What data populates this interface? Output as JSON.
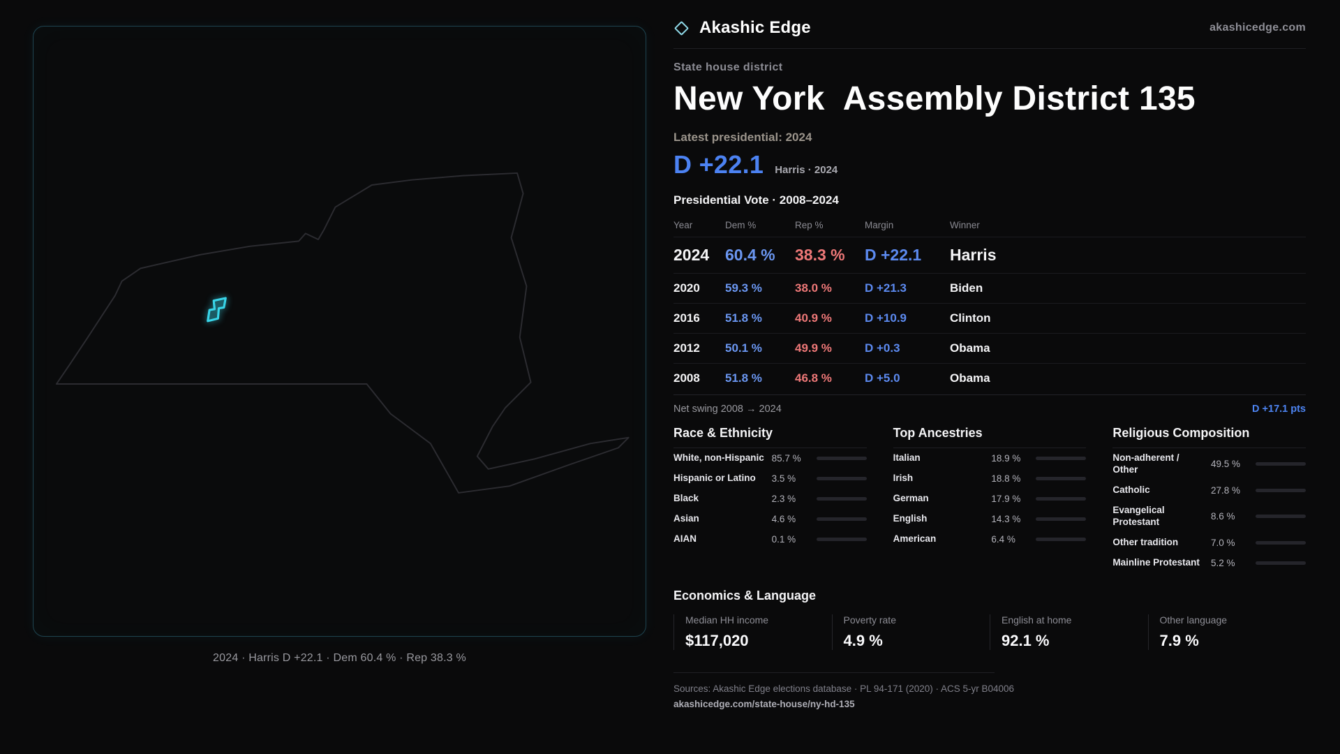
{
  "brand": {
    "name": "Akashic Edge",
    "site": "akashicedge.com"
  },
  "page": {
    "kicker": "State house district",
    "title_region": "New York",
    "title_rest": "Assembly District 135",
    "latest_label": "Latest presidential: 2024",
    "headline_margin": "D +22.1",
    "headline_context": "Harris · 2024"
  },
  "map": {
    "caption": "2024 · Harris D +22.1 · Dem 60.4 % · Rep 38.3 %",
    "district_color": "#38d4e8"
  },
  "votes": {
    "title": "Presidential Vote · 2008–2024",
    "columns": {
      "year": "Year",
      "dem": "Dem %",
      "rep": "Rep %",
      "margin": "Margin",
      "winner": "Winner"
    },
    "rows": [
      {
        "year": "2024",
        "dem": "60.4 %",
        "rep": "38.3 %",
        "margin": "D +22.1",
        "winner": "Harris"
      },
      {
        "year": "2020",
        "dem": "59.3 %",
        "rep": "38.0 %",
        "margin": "D +21.3",
        "winner": "Biden"
      },
      {
        "year": "2016",
        "dem": "51.8 %",
        "rep": "40.9 %",
        "margin": "D +10.9",
        "winner": "Clinton"
      },
      {
        "year": "2012",
        "dem": "50.1 %",
        "rep": "49.9 %",
        "margin": "D +0.3",
        "winner": "Obama"
      },
      {
        "year": "2008",
        "dem": "51.8 %",
        "rep": "46.8 %",
        "margin": "D +5.0",
        "winner": "Obama"
      }
    ],
    "net_swing_label": "Net swing 2008 → 2024",
    "net_swing_value": "D +17.1 pts"
  },
  "demographics": {
    "race": {
      "title": "Race & Ethnicity",
      "items": [
        {
          "label": "White, non-Hispanic",
          "value": "85.7 %",
          "pct": 85.7,
          "color": "#c9cdd6"
        },
        {
          "label": "Hispanic or Latino",
          "value": "3.5 %",
          "pct": 3.5,
          "color": "#e8823f"
        },
        {
          "label": "Black",
          "value": "2.3 %",
          "pct": 2.3,
          "color": "#c9cdd6"
        },
        {
          "label": "Asian",
          "value": "4.6 %",
          "pct": 4.6,
          "color": "#3fcf9a"
        },
        {
          "label": "AIAN",
          "value": "0.1 %",
          "pct": 0.1,
          "color": "#c9cdd6"
        }
      ]
    },
    "ancestries": {
      "title": "Top Ancestries",
      "items": [
        {
          "label": "Italian",
          "value": "18.9 %",
          "pct": 18.9,
          "color": "#8b96aa"
        },
        {
          "label": "Irish",
          "value": "18.8 %",
          "pct": 18.8,
          "color": "#8b96aa"
        },
        {
          "label": "German",
          "value": "17.9 %",
          "pct": 17.9,
          "color": "#8b96aa"
        },
        {
          "label": "English",
          "value": "14.3 %",
          "pct": 14.3,
          "color": "#8b96aa"
        },
        {
          "label": "American",
          "value": "6.4 %",
          "pct": 6.4,
          "color": "#8b96aa"
        }
      ]
    },
    "religion": {
      "title": "Religious Composition",
      "items": [
        {
          "label": "Non-adherent / Other",
          "value": "49.5 %",
          "pct": 49.5,
          "color": "#c9cdd6"
        },
        {
          "label": "Evangelical Protestant",
          "value": "8.6 %",
          "pct": 8.6,
          "color": "#e2737c"
        },
        {
          "label": "Catholic",
          "value": "27.8 %",
          "pct": 27.8,
          "color": "#e3a43a"
        },
        {
          "label": "Other tradition",
          "value": "7.0 %",
          "pct": 7.0,
          "color": "#9aa1ab"
        },
        {
          "label": "Mainline Protestant",
          "value": "5.2 %",
          "pct": 5.2,
          "color": "#4f81ea"
        }
      ]
    }
  },
  "economics": {
    "title": "Economics & Language",
    "stats": [
      {
        "label": "Median HH income",
        "value": "$117,020"
      },
      {
        "label": "Poverty rate",
        "value": "4.9 %"
      },
      {
        "label": "English at home",
        "value": "92.1 %"
      },
      {
        "label": "Other language",
        "value": "7.9 %"
      }
    ]
  },
  "footer": {
    "sources": "Sources: Akashic Edge elections database · PL 94-171 (2020) · ACS 5-yr B04006",
    "permalink": "akashicedge.com/state-house/ny-hd-135"
  },
  "colors": {
    "dem": "#5b8cf0",
    "rep": "#ef7777",
    "accent": "#38d4e8"
  }
}
